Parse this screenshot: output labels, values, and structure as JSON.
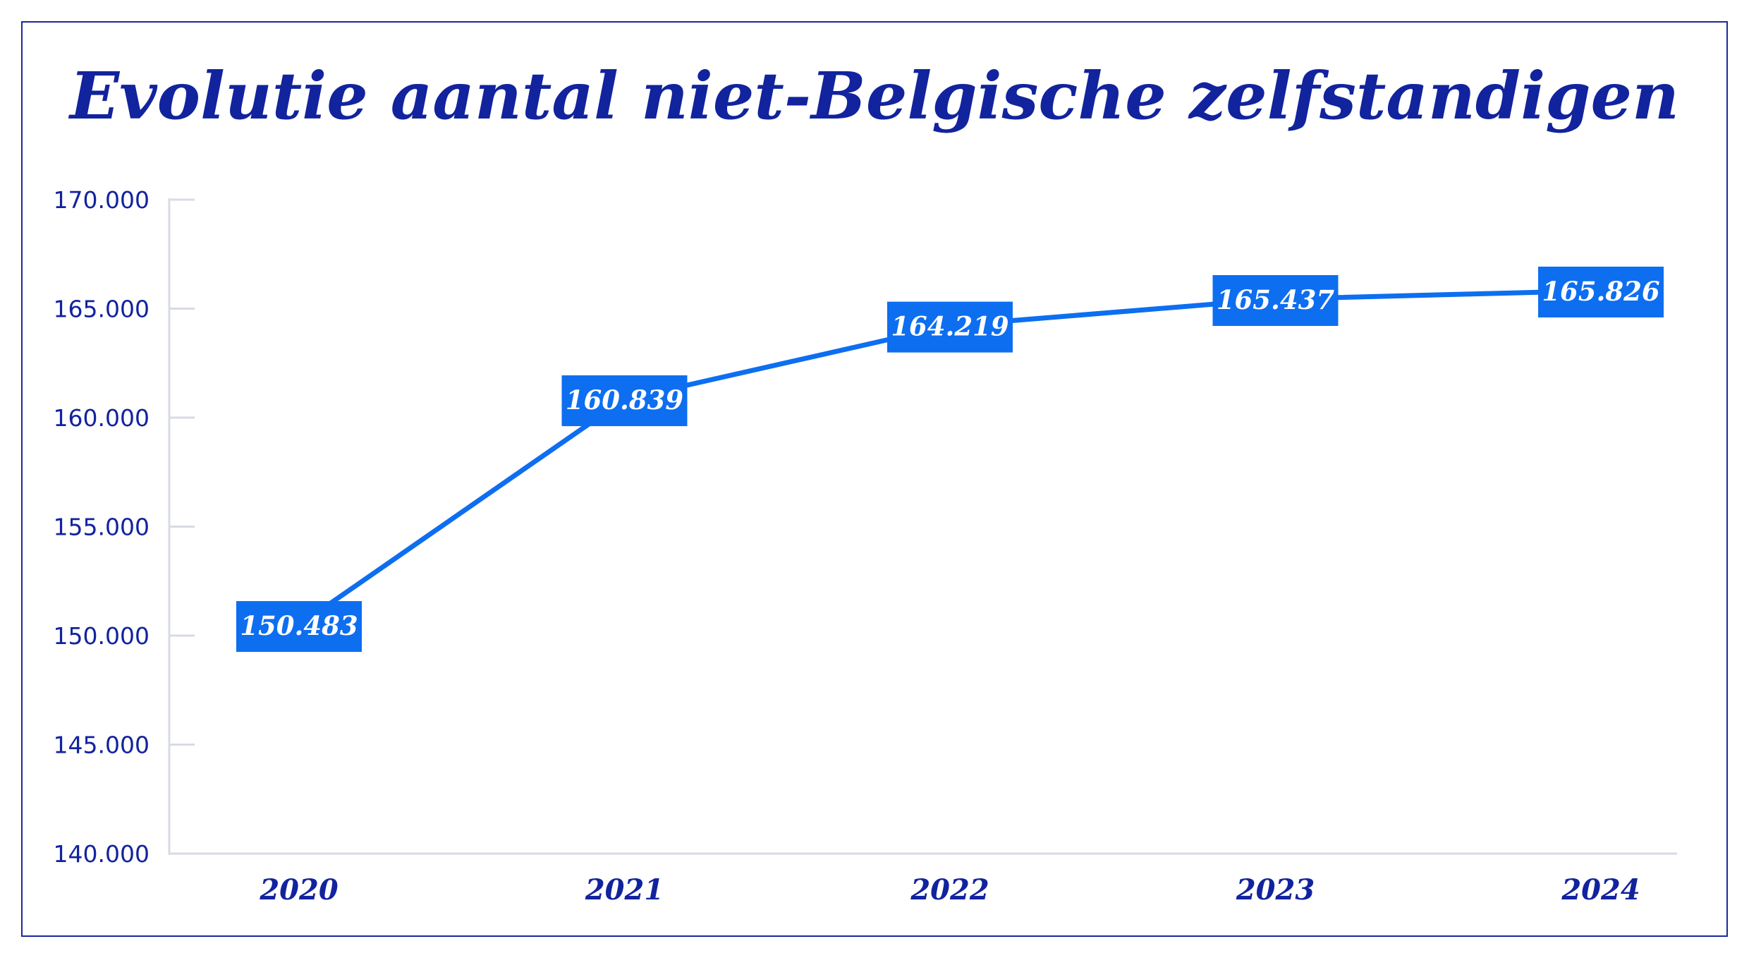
{
  "chart_data": {
    "type": "line",
    "title": "Evolutie aantal niet-Belgische zelfstandigen",
    "xlabel": "",
    "ylabel": "",
    "categories": [
      "2020",
      "2021",
      "2022",
      "2023",
      "2024"
    ],
    "series": [
      {
        "values": [
          150483,
          160839,
          164219,
          165437,
          165826
        ],
        "labels": [
          "150.483",
          "160.839",
          "164.219",
          "165.437",
          "165.826"
        ]
      }
    ],
    "ylim": [
      140000,
      170000
    ],
    "yticks": [
      140000,
      145000,
      150000,
      155000,
      160000,
      165000,
      170000
    ],
    "ytick_labels": [
      "140.000",
      "145.000",
      "150.000",
      "155.000",
      "160.000",
      "165.000",
      "170.000"
    ],
    "grid": false,
    "legend": "none",
    "colors": {
      "line": "#0d6ef0",
      "label_box": "#0d6ef0",
      "label_text": "#ffffff",
      "text": "#12239e",
      "frame": "#1a2a9c",
      "axis": "#d8dbe6"
    }
  }
}
